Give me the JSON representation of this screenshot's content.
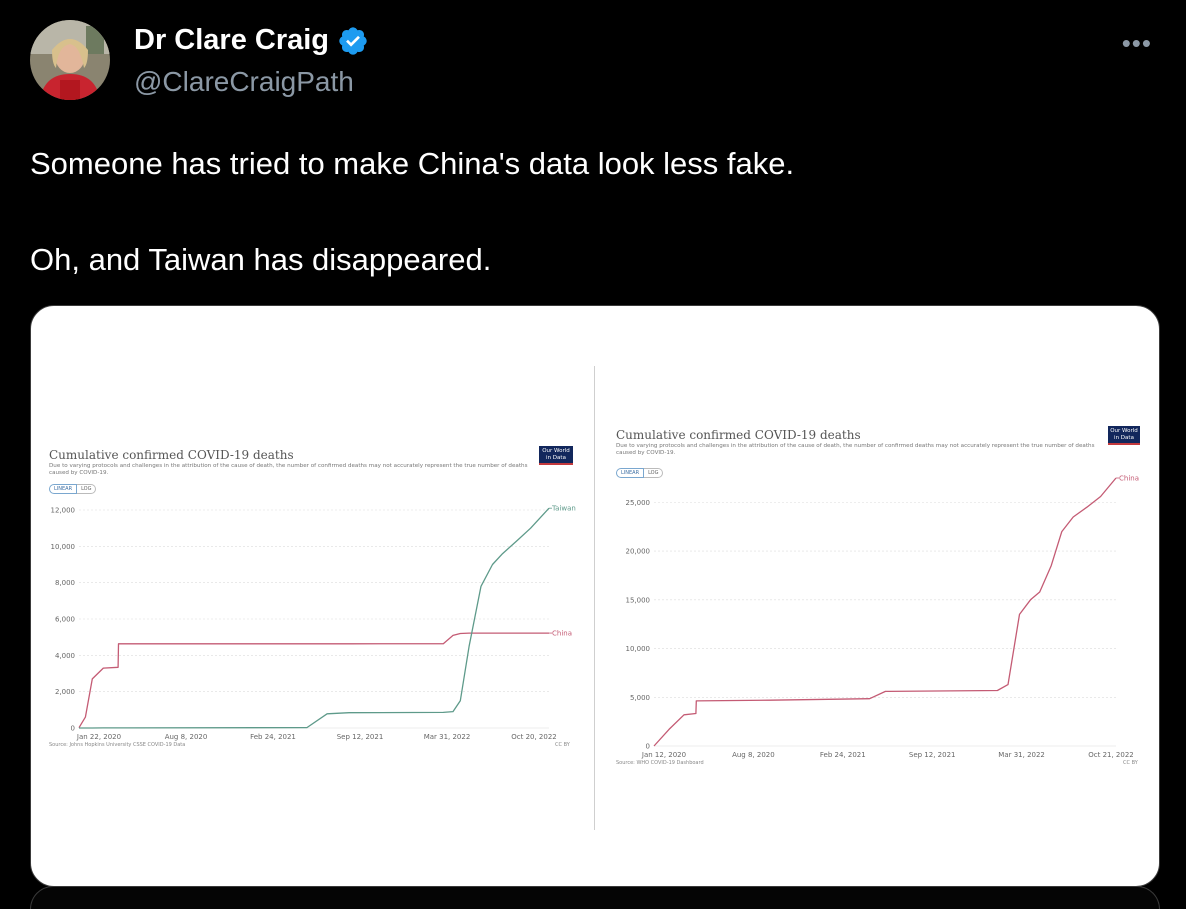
{
  "tweet": {
    "display_name": "Dr Clare Craig",
    "handle": "@ClareCraigPath",
    "more_label": "•••",
    "text_line1": "Someone has tried to make China's data look less fake.",
    "text_line2": "Oh, and Taiwan has disappeared.",
    "verified_icon": "verified-badge-icon",
    "verified_color": "#1d9bf0"
  },
  "media": {
    "left_chart": {
      "title": "Cumulative confirmed COVID-19 deaths",
      "subtitle": "Due to varying protocols and challenges in the attribution of the cause of death, the number of confirmed deaths may not accurately represent the true number of deaths caused by COVID-19.",
      "logo": "Our World in Data",
      "linear_label": "LINEAR",
      "log_label": "LOG",
      "source": "Source: Johns Hopkins University CSSE COVID-19 Data",
      "license": "CC BY"
    },
    "right_chart": {
      "title": "Cumulative confirmed COVID-19 deaths",
      "subtitle": "Due to varying protocols and challenges in the attribution of the cause of death, the number of confirmed deaths may not accurately represent the true number of deaths caused by COVID-19.",
      "logo": "Our World in Data",
      "linear_label": "LINEAR",
      "log_label": "LOG",
      "source": "Source: WHO COVID-19 Dashboard",
      "license": "CC BY"
    }
  },
  "chart_data": [
    {
      "type": "line",
      "title": "Cumulative confirmed COVID-19 deaths",
      "x_ticks": [
        "Jan 22, 2020",
        "Aug 8, 2020",
        "Feb 24, 2021",
        "Sep 12, 2021",
        "Mar 31, 2022",
        "Oct 20, 2022"
      ],
      "y_ticks": [
        0,
        2000,
        4000,
        6000,
        8000,
        10000,
        12000
      ],
      "y_tick_labels": [
        "0",
        "2,000",
        "4,000",
        "6,000",
        "8,000",
        "10,000",
        "12,000"
      ],
      "ylim": [
        0,
        12000
      ],
      "grid": true,
      "x": [
        "2020-01-22",
        "2020-02-05",
        "2020-02-20",
        "2020-03-15",
        "2020-04-16",
        "2020-04-17",
        "2021-06-01",
        "2021-07-15",
        "2021-09-01",
        "2022-03-25",
        "2022-04-15",
        "2022-05-01",
        "2022-05-20",
        "2022-06-15",
        "2022-07-10",
        "2022-08-01",
        "2022-09-01",
        "2022-10-01",
        "2022-11-10"
      ],
      "series": [
        {
          "name": "China",
          "color": "#c45b74",
          "values": [
            17,
            600,
            2700,
            3300,
            3340,
            4636,
            4636,
            4636,
            4636,
            4640,
            5100,
            5200,
            5226,
            5226,
            5226,
            5226,
            5226,
            5226,
            5226
          ]
        },
        {
          "name": "Taiwan",
          "color": "#5e9a8a",
          "values": [
            0,
            0,
            0,
            5,
            6,
            6,
            20,
            780,
            840,
            860,
            900,
            1500,
            4500,
            7800,
            9000,
            9600,
            10300,
            11000,
            12100
          ]
        }
      ]
    },
    {
      "type": "line",
      "title": "Cumulative confirmed COVID-19 deaths",
      "x_ticks": [
        "Jan 12, 2020",
        "Aug 8, 2020",
        "Feb 24, 2021",
        "Sep 12, 2021",
        "Mar 31, 2022",
        "Oct 21, 2022"
      ],
      "y_ticks": [
        0,
        5000,
        10000,
        15000,
        20000,
        25000
      ],
      "y_tick_labels": [
        "0",
        "5,000",
        "10,000",
        "15,000",
        "20,000",
        "25,000"
      ],
      "ylim": [
        0,
        27500
      ],
      "grid": true,
      "x": [
        "2020-01-12",
        "2020-02-15",
        "2020-03-20",
        "2020-04-16",
        "2020-04-17",
        "2020-10-01",
        "2021-03-01",
        "2021-05-15",
        "2021-06-20",
        "2022-03-01",
        "2022-03-25",
        "2022-04-20",
        "2022-05-15",
        "2022-06-05",
        "2022-07-01",
        "2022-07-25",
        "2022-08-20",
        "2022-09-20",
        "2022-10-21",
        "2022-11-25"
      ],
      "series": [
        {
          "name": "China",
          "color": "#c45b74",
          "values": [
            0,
            1700,
            3200,
            3340,
            4630,
            4700,
            4800,
            4850,
            5600,
            5700,
            6300,
            13500,
            15000,
            15800,
            18500,
            22000,
            23500,
            24500,
            25600,
            27500
          ]
        }
      ]
    }
  ]
}
